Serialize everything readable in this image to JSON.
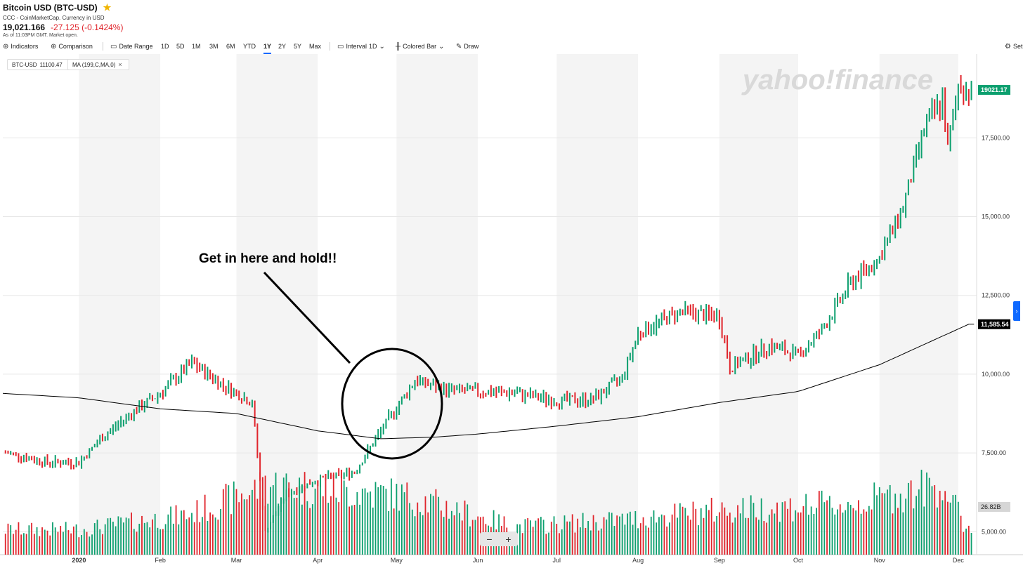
{
  "header": {
    "title": "Bitcoin USD (BTC-USD)",
    "source": "CCC - CoinMarketCap. Currency in USD",
    "price": "19,021.166",
    "change": "-27.125 (-0.1424%)",
    "as_of": "As of 11:03PM GMT. Market open."
  },
  "toolbar": {
    "indicators": "Indicators",
    "comparison": "Comparison",
    "date_range": "Date Range",
    "ranges": [
      "1D",
      "5D",
      "1M",
      "3M",
      "6M",
      "YTD",
      "1Y",
      "2Y",
      "5Y",
      "Max"
    ],
    "active_range": "1Y",
    "interval": "Interval",
    "interval_value": "1D",
    "chart_type": "Colored Bar",
    "draw": "Draw",
    "settings": "Set"
  },
  "legend": {
    "ticker": "BTC-USD",
    "ticker_value": "11100.47",
    "ma": "MA (199,C,MA,0)"
  },
  "watermark": "yahoo!finance",
  "annotation": "Get in here and hold!!",
  "zoom": {
    "minus": "−",
    "plus": "+"
  },
  "colors": {
    "up": "#0c9f6e",
    "down": "#e0242b",
    "ma_line": "#000000",
    "last_price_tag": "#0c9f6e",
    "ma_tag": "#000000",
    "accent": "#0f69ff"
  },
  "chart_data": {
    "type": "bar",
    "subtype": "colored-bar OHLC with moving average and volume",
    "x_tick_labels": [
      "2020",
      "Feb",
      "Mar",
      "Apr",
      "May",
      "Jun",
      "Jul",
      "Aug",
      "Sep",
      "Oct",
      "Nov",
      "Dec"
    ],
    "y_tick_labels": [
      "5,000.00",
      "7,500.00",
      "10,000.00",
      "12,500.00",
      "15,000.00",
      "17,500.00"
    ],
    "ylim": [
      4300,
      19900
    ],
    "price_tags": {
      "last": "19021.17",
      "ma": "11,585.54",
      "volume": "26.82B"
    },
    "price_series": {
      "name": "BTC-USD",
      "dates": [
        "2019-12-05",
        "2019-12-20",
        "2020-01-01",
        "2020-01-10",
        "2020-01-20",
        "2020-02-01",
        "2020-02-13",
        "2020-02-25",
        "2020-03-07",
        "2020-03-12",
        "2020-03-20",
        "2020-04-01",
        "2020-04-15",
        "2020-04-29",
        "2020-05-08",
        "2020-05-20",
        "2020-06-01",
        "2020-06-15",
        "2020-07-01",
        "2020-07-15",
        "2020-07-26",
        "2020-08-01",
        "2020-08-17",
        "2020-09-01",
        "2020-09-05",
        "2020-09-20",
        "2020-10-01",
        "2020-10-10",
        "2020-10-21",
        "2020-11-01",
        "2020-11-10",
        "2020-11-18",
        "2020-11-25",
        "2020-11-27",
        "2020-12-01",
        "2020-12-04"
      ],
      "values": [
        7500,
        7200,
        7200,
        8000,
        8700,
        9400,
        10350,
        9650,
        9100,
        5000,
        6200,
        6650,
        6900,
        8700,
        9800,
        9500,
        9450,
        9400,
        9150,
        9200,
        9900,
        11300,
        12000,
        11800,
        10200,
        10900,
        10600,
        11400,
        12900,
        13700,
        15300,
        17800,
        18700,
        17100,
        19200,
        19021
      ]
    },
    "ma_series": {
      "name": "MA (199,C,MA,0)",
      "dates": [
        "2019-12-01",
        "2020-01-01",
        "2020-02-01",
        "2020-03-01",
        "2020-04-01",
        "2020-04-25",
        "2020-05-15",
        "2020-06-01",
        "2020-07-01",
        "2020-08-01",
        "2020-09-01",
        "2020-10-01",
        "2020-11-01",
        "2020-12-05"
      ],
      "values": [
        9400,
        9250,
        8900,
        8750,
        8200,
        7950,
        8000,
        8100,
        8350,
        8650,
        9100,
        9450,
        10300,
        11585
      ]
    },
    "volume_series": {
      "name": "Volume",
      "dates": [
        "2020-01-01",
        "2020-02-12",
        "2020-03-13",
        "2020-04-30",
        "2020-05-10",
        "2020-06-15",
        "2020-07-27",
        "2020-09-03",
        "2020-10-21",
        "2020-11-25",
        "2020-12-04"
      ],
      "values_billion": [
        25,
        40,
        70,
        60,
        55,
        28,
        35,
        45,
        50,
        70,
        26.82
      ]
    }
  }
}
